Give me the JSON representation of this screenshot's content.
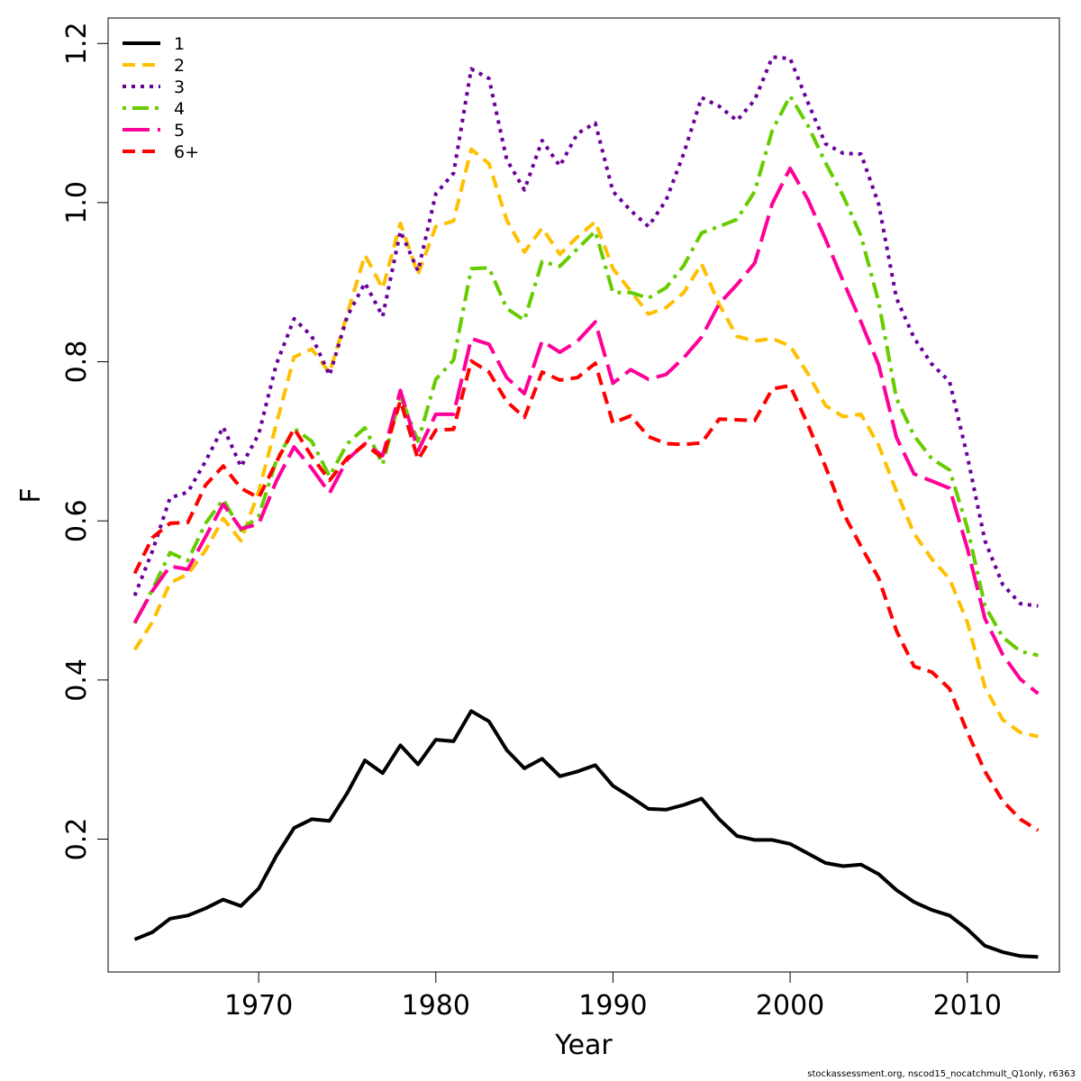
{
  "footer": "stockassessment.org, nscod15_nocatchmult_Q1only, r6363",
  "chart_data": {
    "type": "line",
    "title": "",
    "xlabel": "Year",
    "ylabel": "F",
    "xlim": [
      1961.5,
      2015.2
    ],
    "ylim": [
      0.033,
      1.232
    ],
    "xticks": [
      1970,
      1980,
      1990,
      2000,
      2010
    ],
    "yticks": [
      0.2,
      0.4,
      0.6,
      0.8,
      1.0,
      1.2
    ],
    "ytick_labels": [
      "0.2",
      "0.4",
      "0.6",
      "0.8",
      "1.0",
      "1.2"
    ],
    "legend_position": "top-left",
    "grid": false,
    "x": [
      1963,
      1964,
      1965,
      1966,
      1967,
      1968,
      1969,
      1970,
      1971,
      1972,
      1973,
      1974,
      1975,
      1976,
      1977,
      1978,
      1979,
      1980,
      1981,
      1982,
      1983,
      1984,
      1985,
      1986,
      1987,
      1988,
      1989,
      1990,
      1991,
      1992,
      1993,
      1994,
      1995,
      1996,
      1997,
      1998,
      1999,
      2000,
      2001,
      2002,
      2003,
      2004,
      2005,
      2006,
      2007,
      2008,
      2009,
      2010,
      2011,
      2012,
      2013,
      2014
    ],
    "series": [
      {
        "name": "1",
        "color": "#000000",
        "dash": "solid",
        "values": [
          0.074,
          0.083,
          0.1,
          0.104,
          0.113,
          0.124,
          0.116,
          0.138,
          0.179,
          0.214,
          0.225,
          0.223,
          0.258,
          0.299,
          0.283,
          0.318,
          0.294,
          0.325,
          0.323,
          0.361,
          0.348,
          0.312,
          0.289,
          0.301,
          0.279,
          0.285,
          0.293,
          0.267,
          0.253,
          0.238,
          0.237,
          0.243,
          0.251,
          0.225,
          0.204,
          0.199,
          0.199,
          0.194,
          0.182,
          0.17,
          0.166,
          0.168,
          0.156,
          0.136,
          0.121,
          0.111,
          0.104,
          0.087,
          0.066,
          0.058,
          0.053,
          0.052
        ]
      },
      {
        "name": "2",
        "color": "#FFC000",
        "dash": "dashed",
        "values": [
          0.438,
          0.473,
          0.522,
          0.533,
          0.563,
          0.603,
          0.575,
          0.637,
          0.722,
          0.806,
          0.816,
          0.786,
          0.86,
          0.934,
          0.892,
          0.974,
          0.91,
          0.97,
          0.977,
          1.067,
          1.049,
          0.978,
          0.938,
          0.968,
          0.935,
          0.957,
          0.976,
          0.917,
          0.889,
          0.86,
          0.868,
          0.887,
          0.923,
          0.872,
          0.832,
          0.826,
          0.829,
          0.82,
          0.785,
          0.745,
          0.731,
          0.734,
          0.695,
          0.637,
          0.584,
          0.552,
          0.527,
          0.473,
          0.391,
          0.35,
          0.334,
          0.329
        ]
      },
      {
        "name": "3",
        "color": "#6A0099",
        "dash": "dotted",
        "values": [
          0.506,
          0.562,
          0.629,
          0.636,
          0.675,
          0.718,
          0.668,
          0.709,
          0.797,
          0.854,
          0.832,
          0.783,
          0.857,
          0.899,
          0.857,
          0.964,
          0.914,
          1.011,
          1.037,
          1.168,
          1.156,
          1.054,
          1.016,
          1.078,
          1.046,
          1.087,
          1.1,
          1.014,
          0.99,
          0.97,
          1.003,
          1.062,
          1.132,
          1.121,
          1.103,
          1.129,
          1.183,
          1.181,
          1.126,
          1.074,
          1.062,
          1.061,
          0.998,
          0.88,
          0.83,
          0.797,
          0.775,
          0.682,
          0.575,
          0.52,
          0.496,
          0.493
        ]
      },
      {
        "name": "4",
        "color": "#66CC00",
        "dash": "dot-dash",
        "values": [
          0.471,
          0.514,
          0.56,
          0.55,
          0.597,
          0.627,
          0.588,
          0.606,
          0.676,
          0.716,
          0.7,
          0.656,
          0.697,
          0.717,
          0.671,
          0.757,
          0.7,
          0.778,
          0.802,
          0.917,
          0.918,
          0.867,
          0.852,
          0.926,
          0.92,
          0.942,
          0.964,
          0.887,
          0.887,
          0.88,
          0.893,
          0.921,
          0.962,
          0.97,
          0.979,
          1.014,
          1.091,
          1.134,
          1.097,
          1.05,
          1.008,
          0.958,
          0.875,
          0.754,
          0.707,
          0.678,
          0.664,
          0.592,
          0.493,
          0.454,
          0.436,
          0.431
        ]
      },
      {
        "name": "5",
        "color": "#FF0099",
        "dash": "longdash",
        "values": [
          0.472,
          0.512,
          0.543,
          0.539,
          0.58,
          0.621,
          0.59,
          0.596,
          0.65,
          0.693,
          0.666,
          0.635,
          0.677,
          0.697,
          0.682,
          0.764,
          0.688,
          0.734,
          0.734,
          0.829,
          0.822,
          0.78,
          0.76,
          0.826,
          0.812,
          0.826,
          0.85,
          0.773,
          0.79,
          0.778,
          0.784,
          0.805,
          0.831,
          0.873,
          0.897,
          0.924,
          0.999,
          1.043,
          1.004,
          0.954,
          0.901,
          0.85,
          0.796,
          0.705,
          0.659,
          0.65,
          0.641,
          0.566,
          0.477,
          0.432,
          0.401,
          0.383
        ]
      },
      {
        "name": "6+",
        "color": "#FF0000",
        "dash": "dashed",
        "values": [
          0.534,
          0.579,
          0.597,
          0.598,
          0.645,
          0.669,
          0.641,
          0.629,
          0.674,
          0.716,
          0.681,
          0.651,
          0.679,
          0.696,
          0.679,
          0.751,
          0.677,
          0.714,
          0.715,
          0.801,
          0.787,
          0.75,
          0.73,
          0.787,
          0.777,
          0.78,
          0.798,
          0.723,
          0.732,
          0.706,
          0.697,
          0.696,
          0.698,
          0.728,
          0.727,
          0.726,
          0.766,
          0.77,
          0.721,
          0.668,
          0.61,
          0.568,
          0.528,
          0.462,
          0.417,
          0.41,
          0.389,
          0.335,
          0.285,
          0.248,
          0.225,
          0.211
        ]
      }
    ]
  }
}
